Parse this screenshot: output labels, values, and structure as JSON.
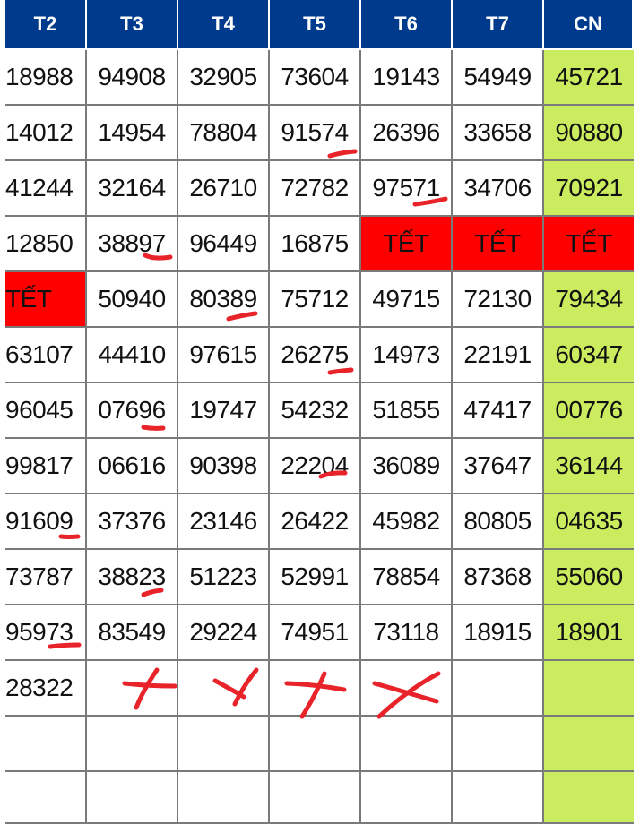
{
  "headers": [
    "T2",
    "T3",
    "T4",
    "T5",
    "T6",
    "T7",
    "CN"
  ],
  "colors": {
    "header_bg": "#003a8c",
    "sunday_bg": "#ccec5f",
    "tet_bg": "#ff0000",
    "mark": "#e8232a"
  },
  "rows": [
    [
      "18988",
      "94908",
      "32905",
      "73604",
      "19143",
      "54949",
      "45721"
    ],
    [
      "14012",
      "14954",
      "78804",
      "91574",
      "26396",
      "33658",
      "90880"
    ],
    [
      "41244",
      "32164",
      "26710",
      "72782",
      "97571",
      "34706",
      "70921"
    ],
    [
      "12850",
      "38897",
      "96449",
      "16875",
      "TẾT",
      "TẾT",
      "TẾT"
    ],
    [
      "TẾT",
      "50940",
      "80389",
      "75712",
      "49715",
      "72130",
      "79434"
    ],
    [
      "63107",
      "44410",
      "97615",
      "26275",
      "14973",
      "22191",
      "60347"
    ],
    [
      "96045",
      "07696",
      "19747",
      "54232",
      "51855",
      "47417",
      "00776"
    ],
    [
      "99817",
      "06616",
      "90398",
      "22204",
      "36089",
      "37647",
      "36144"
    ],
    [
      "91609",
      "37376",
      "23146",
      "26422",
      "45982",
      "80805",
      "04635"
    ],
    [
      "73787",
      "38823",
      "51223",
      "52991",
      "78854",
      "87368",
      "55060"
    ],
    [
      "95973",
      "83549",
      "29224",
      "74951",
      "73118",
      "18915",
      "18901"
    ],
    [
      "28322",
      "",
      "",
      "",
      "",
      "",
      ""
    ],
    [
      "",
      "",
      "",
      "",
      "",
      "",
      ""
    ],
    [
      "",
      "",
      "",
      "",
      "",
      "",
      ""
    ]
  ]
}
